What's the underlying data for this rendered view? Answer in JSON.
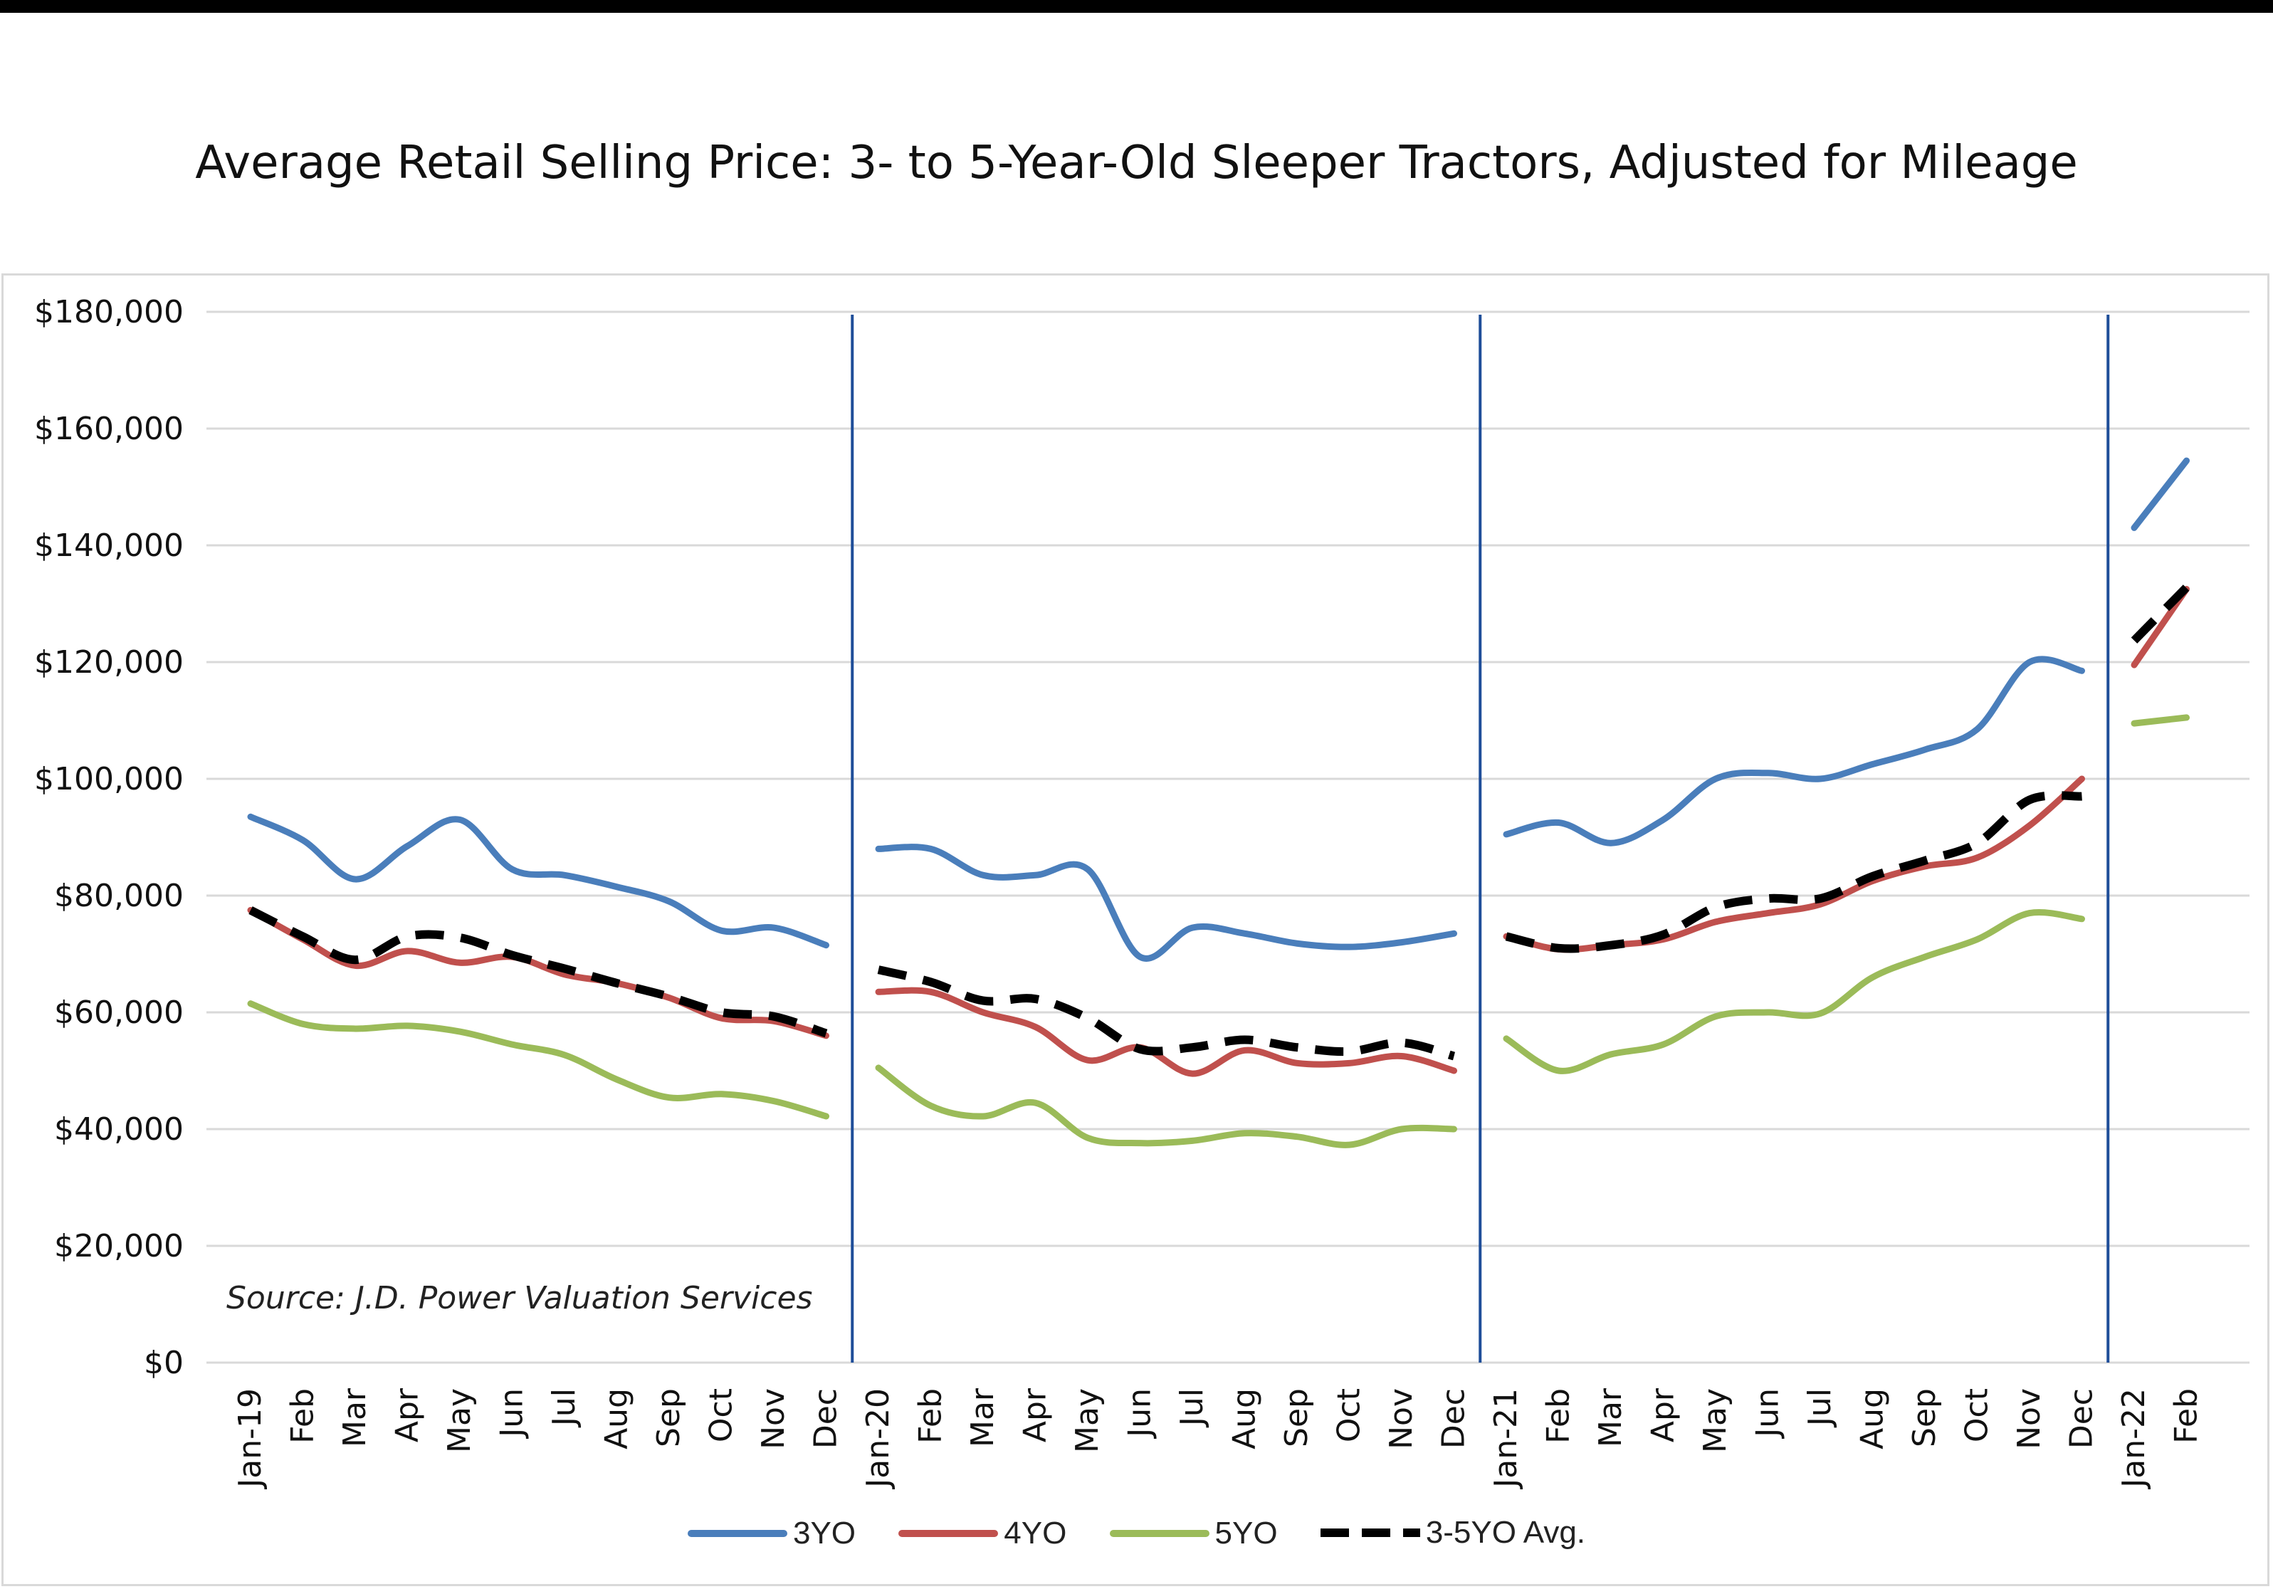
{
  "title": "Average Retail Selling Price: 3- to 5-Year-Old Sleeper Tractors, Adjusted for Mileage",
  "source": "Source: J.D. Power Valuation Services",
  "colors": {
    "3YO": "#4a7ebb",
    "4YO": "#c0504d",
    "5YO": "#9bbb59",
    "avg": "#000000",
    "divider": "#1f4e99",
    "grid": "#d9d9d9"
  },
  "chart_data": {
    "type": "line",
    "title": "Average Retail Selling Price: 3- to 5-Year-Old Sleeper Tractors, Adjusted for Mileage",
    "ylim": [
      0,
      180000
    ],
    "yticks": [
      "$0",
      "$20,000",
      "$40,000",
      "$60,000",
      "$80,000",
      "$100,000",
      "$120,000",
      "$140,000",
      "$160,000",
      "$180,000"
    ],
    "grid": true,
    "legend": "bottom",
    "categories": [
      "Jan-19",
      "Feb",
      "Mar",
      "Apr",
      "May",
      "Jun",
      "Jul",
      "Aug",
      "Sep",
      "Oct",
      "Nov",
      "Dec",
      "Jan-20",
      "Feb",
      "Mar",
      "Apr",
      "May",
      "Jun",
      "Jul",
      "Aug",
      "Sep",
      "Oct",
      "Nov",
      "Dec",
      "Jan-21",
      "Feb",
      "Mar",
      "Apr",
      "May",
      "Jun",
      "Jul",
      "Aug",
      "Sep",
      "Oct",
      "Nov",
      "Dec",
      "Jan-22",
      "Feb"
    ],
    "year_groups": [
      [
        0,
        11
      ],
      [
        12,
        23
      ],
      [
        24,
        35
      ],
      [
        36,
        37
      ]
    ],
    "series": [
      {
        "name": "3YO",
        "style": "solid",
        "values": [
          93500,
          89500,
          82800,
          88500,
          93000,
          84500,
          83500,
          81500,
          79000,
          74000,
          74500,
          71500,
          88000,
          88000,
          83500,
          83500,
          84500,
          69500,
          74500,
          73500,
          71800,
          71200,
          72000,
          73500,
          90500,
          92500,
          89000,
          93000,
          100000,
          101000,
          100000,
          102500,
          105000,
          108500,
          120000,
          118500,
          143000,
          154500
        ]
      },
      {
        "name": "4YO",
        "style": "solid",
        "values": [
          77500,
          72500,
          68000,
          70500,
          68500,
          69500,
          66500,
          65000,
          62500,
          59000,
          58500,
          56000,
          63500,
          63500,
          60000,
          57500,
          51800,
          54000,
          49500,
          53500,
          51300,
          51300,
          52500,
          50000,
          73000,
          70800,
          71500,
          72500,
          75500,
          77000,
          78500,
          82500,
          85000,
          86500,
          92000,
          100000,
          119500,
          132500
        ]
      },
      {
        "name": "5YO",
        "style": "solid",
        "values": [
          61500,
          58000,
          57200,
          57700,
          56700,
          54500,
          52700,
          48500,
          45400,
          46000,
          44800,
          42200,
          50500,
          44000,
          42200,
          44500,
          38500,
          37600,
          38000,
          39300,
          38700,
          37300,
          40000,
          40000,
          55500,
          50000,
          52800,
          54500,
          59300,
          60000,
          59800,
          66000,
          69500,
          72500,
          77000,
          76000,
          109500,
          110500
        ]
      },
      {
        "name": "3-5YO Avg.",
        "style": "dashed",
        "values": [
          77500,
          73000,
          69000,
          73000,
          72800,
          69800,
          67500,
          65000,
          62700,
          60000,
          59300,
          56400,
          67300,
          65200,
          62000,
          62300,
          59000,
          53700,
          54000,
          55300,
          54000,
          53300,
          54800,
          52500,
          73000,
          71000,
          71500,
          73300,
          78000,
          79500,
          79500,
          83300,
          86000,
          89000,
          96400,
          97000,
          123700,
          132800
        ]
      }
    ]
  }
}
